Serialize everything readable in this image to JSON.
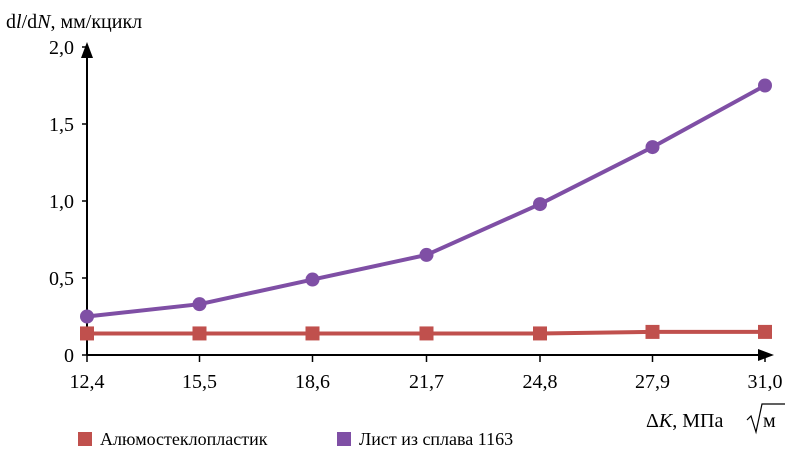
{
  "chart_data": {
    "type": "line",
    "x": [
      "12,4",
      "15,5",
      "18,6",
      "21,7",
      "24,8",
      "27,9",
      "31,0"
    ],
    "y_ticks": [
      "0",
      "0,5",
      "1,0",
      "1,5",
      "2,0"
    ],
    "ylim": [
      0,
      2.0
    ],
    "ylabel": "dl/dN, мм/кцикл",
    "ylabel_parts": {
      "d1": "d",
      "l": "l",
      "d2": "/d",
      "N": "N",
      "rest": ", мм/кцикл"
    },
    "xlabel": "ΔK, МПа√м",
    "xlabel_parts": {
      "delta": "Δ",
      "K": "K",
      "rest": ", МПа",
      "sqrt_arg": "м"
    },
    "grid": false,
    "legend_position": "bottom-left",
    "series": [
      {
        "name": "Алюмостеклопластик",
        "color": "#c0504d",
        "marker": "square",
        "values": [
          0.14,
          0.14,
          0.14,
          0.14,
          0.14,
          0.15,
          0.15
        ]
      },
      {
        "name": "Лист из сплава 1163",
        "color": "#7f4fa5",
        "marker": "circle",
        "values": [
          0.25,
          0.33,
          0.49,
          0.65,
          0.98,
          1.35,
          1.75
        ]
      }
    ]
  }
}
